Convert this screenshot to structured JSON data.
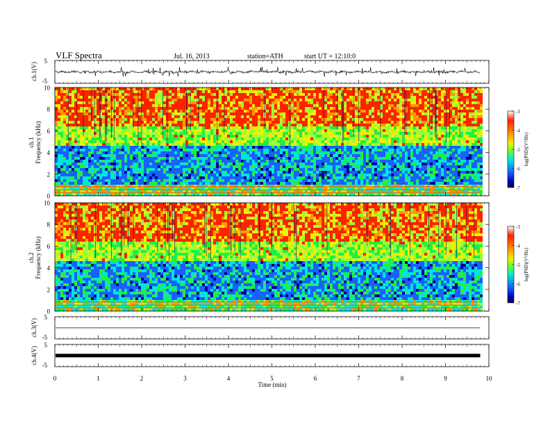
{
  "header": {
    "title": "VLF  Spectra",
    "date": "Jul.  16,  2013",
    "station": "station=ATH",
    "start": "start  UT  =    12:10:0"
  },
  "chart_data": [
    {
      "type": "line",
      "panel": "ch1-waveform",
      "ylabel": "ch.1(V)",
      "yticks": [
        "5",
        "-5"
      ],
      "ylim": [
        -5,
        5
      ],
      "description_trace": "dense noisy waveform with frequent spikes to about +/-2 V"
    },
    {
      "type": "heatmap",
      "panel": "ch1-spectrogram",
      "ylabel_1": "ch.1",
      "ylabel_2": "Frequency  (kHz)",
      "yticks": [
        "0",
        "2",
        "4",
        "6",
        "8",
        "10"
      ],
      "ylim": [
        0,
        10
      ],
      "colorbar": {
        "label": "log(PSD)(V²/Hz)",
        "ticks": [
          "-3",
          "-4",
          "-5",
          "-6",
          "-7"
        ],
        "range": [
          -7,
          -3
        ]
      }
    },
    {
      "type": "heatmap",
      "panel": "ch2-spectrogram",
      "ylabel_1": "ch.2",
      "ylabel_2": "Frequency  (kHz)",
      "yticks": [
        "0",
        "2",
        "4",
        "6",
        "8",
        "10"
      ],
      "ylim": [
        0,
        10
      ],
      "colorbar": {
        "label": "log(PSD)(V²/Hz)",
        "ticks": [
          "-3",
          "-4",
          "-5",
          "-6",
          "-7"
        ],
        "range": [
          -7,
          -3
        ]
      }
    },
    {
      "type": "line",
      "panel": "ch3-waveform",
      "ylabel": "ch.3(V)",
      "yticks": [
        "5",
        "-5"
      ],
      "ylim": [
        -5,
        5
      ],
      "description_trace": "flat trace near 0 V"
    },
    {
      "type": "line",
      "panel": "ch4-waveform",
      "ylabel": "ch.4(V)",
      "yticks": [
        "5",
        "-5"
      ],
      "ylim": [
        -5,
        5
      ],
      "description_trace": "thick flat trace near 0 V"
    }
  ],
  "xaxis": {
    "label": "Time  (min)",
    "ticks": [
      "0",
      "1",
      "2",
      "3",
      "4",
      "5",
      "6",
      "7",
      "8",
      "9",
      "10"
    ],
    "xlim": [
      0,
      10
    ],
    "data_end": 9.8
  },
  "colors": {
    "red": "#ff2200",
    "orange": "#ff9a00",
    "yellow": "#f0f000",
    "lightgreen": "#9aff3a",
    "green": "#22ee44",
    "cyan": "#00e6d8",
    "blue": "#1860ff",
    "navy": "#000090"
  }
}
